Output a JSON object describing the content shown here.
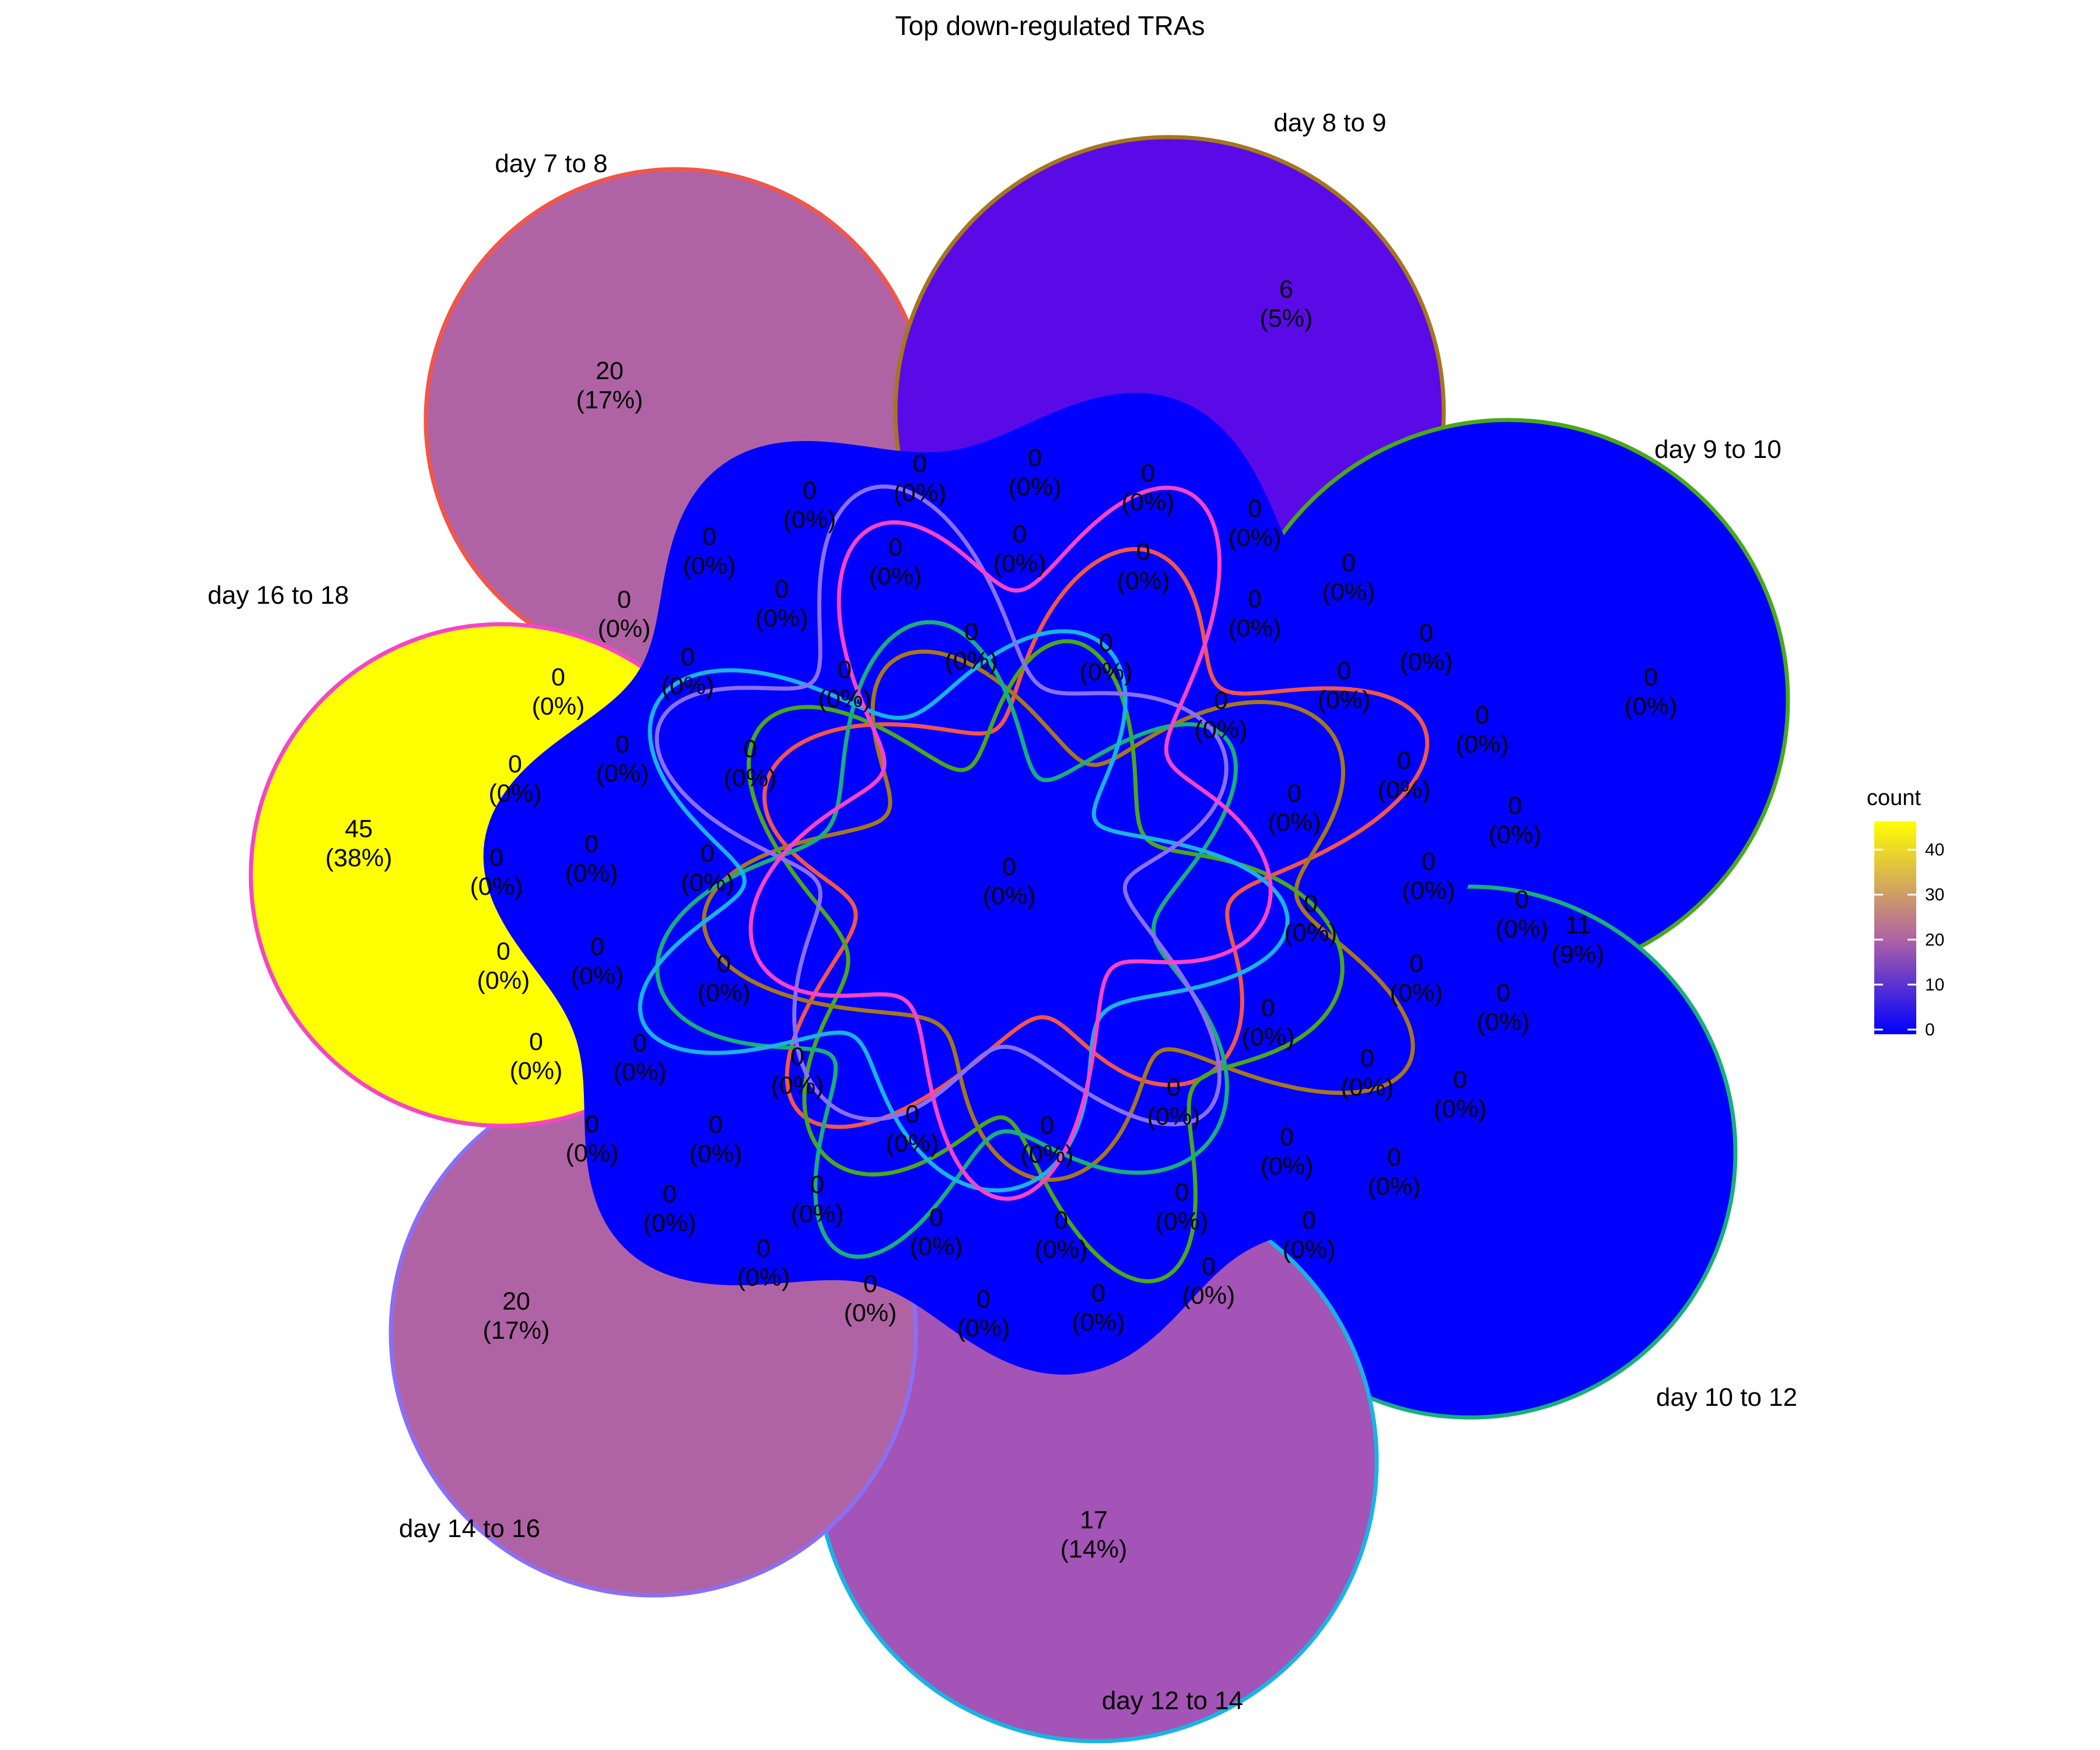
{
  "title": "Top down-regulated TRAs",
  "sets": [
    {
      "name": "day 7 to 8",
      "count": 20,
      "pct": "17%",
      "fill": "#b063a4",
      "stroke": "#f2554a"
    },
    {
      "name": "day 8 to 9",
      "count": 6,
      "pct": "5%",
      "fill": "#5a0ae6",
      "stroke": "#a6761d"
    },
    {
      "name": "day 9 to 10",
      "count": 0,
      "pct": "0%",
      "fill": "#0000ff",
      "stroke": "#4aa81a"
    },
    {
      "name": "day 10 to 12",
      "count": 11,
      "pct": "9%",
      "fill": "#0000ff",
      "stroke": "#1aae7a"
    },
    {
      "name": "day 12 to 14",
      "count": 17,
      "pct": "14%",
      "fill": "#a453b6",
      "stroke": "#19b3e6"
    },
    {
      "name": "day 14 to 16",
      "count": 20,
      "pct": "17%",
      "fill": "#b063a4",
      "stroke": "#8a6ff5"
    },
    {
      "name": "day 16 to 18",
      "count": 45,
      "pct": "38%",
      "fill": "#ffff00",
      "stroke": "#f545c5"
    }
  ],
  "center": {
    "count": 0,
    "pct": "0%"
  },
  "other_region_label": {
    "count": 0,
    "pct": "0%"
  },
  "region_fill": "#0000ff",
  "legend": {
    "title": "count",
    "ticks": [
      "0",
      "10",
      "20",
      "30",
      "40"
    ],
    "low_color": "#0000ff",
    "mid_color": "#b063a4",
    "high_color": "#ffff00",
    "max": 45
  }
}
